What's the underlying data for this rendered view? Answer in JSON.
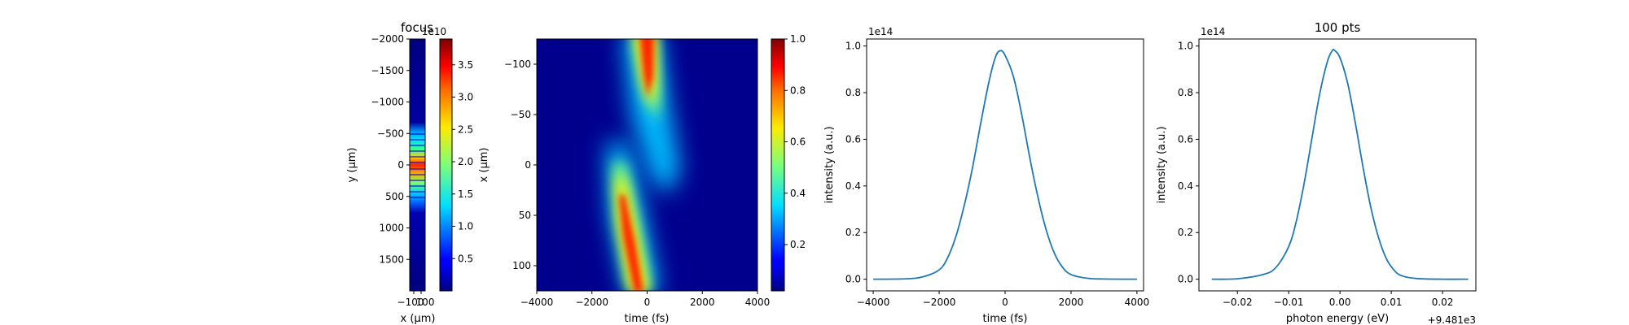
{
  "colors": {
    "line": "#1f77b4",
    "background": "#00007f"
  },
  "chart_data": [
    {
      "type": "heatmap",
      "title": "focus",
      "xlabel": "x (μm)",
      "ylabel": "y (μm)",
      "xticks": [
        "−100",
        "100"
      ],
      "ylim": [
        -2000,
        2000
      ],
      "yticks": [
        "−2000",
        "−1500",
        "−1000",
        "−500",
        "0",
        "500",
        "1000",
        "1500"
      ],
      "colormap": "jet",
      "colorbar": {
        "scale_label": "1e10",
        "range": [
          0,
          3.9
        ],
        "ticks": [
          "0.5",
          "1.0",
          "1.5",
          "2.0",
          "2.5",
          "3.0",
          "3.5"
        ]
      }
    },
    {
      "type": "heatmap",
      "xlabel": "time (fs)",
      "ylabel": "x (μm)",
      "xlim": [
        -4000,
        4000
      ],
      "xticks": [
        "−4000",
        "−2000",
        "0",
        "2000",
        "4000"
      ],
      "ylim": [
        -125,
        125
      ],
      "yticks": [
        "−100",
        "−50",
        "0",
        "50",
        "100"
      ],
      "colormap": "jet",
      "colorbar": {
        "range": [
          0.02,
          1.0
        ],
        "ticks": [
          "0.2",
          "0.4",
          "0.6",
          "0.8",
          "1.0"
        ]
      }
    },
    {
      "type": "line",
      "xlabel": "time (fs)",
      "ylabel": "intensity (a.u.)",
      "offset_label": "1e14",
      "xlim": [
        -4200,
        4200
      ],
      "xticks": [
        "−4000",
        "−2000",
        "0",
        "2000",
        "4000"
      ],
      "ylim": [
        -0.05,
        1.03
      ],
      "yticks": [
        "0.0",
        "0.2",
        "0.4",
        "0.6",
        "0.8",
        "1.0"
      ],
      "series": [
        {
          "x": [
            -4000,
            -3000,
            -2500,
            -2000,
            -1750,
            -1500,
            -1250,
            -1000,
            -750,
            -500,
            -300,
            -150,
            0,
            250,
            500,
            750,
            1000,
            1250,
            1500,
            1750,
            2000,
            2500,
            3000,
            4000
          ],
          "y": [
            0.0,
            0.002,
            0.01,
            0.04,
            0.09,
            0.18,
            0.31,
            0.47,
            0.66,
            0.84,
            0.95,
            0.98,
            0.96,
            0.87,
            0.71,
            0.52,
            0.35,
            0.21,
            0.11,
            0.05,
            0.02,
            0.004,
            0.001,
            0.0
          ]
        }
      ]
    },
    {
      "type": "line",
      "title": "100 pts",
      "xlabel": "photon energy (eV)",
      "ylabel": "intensity (a.u.)",
      "offset_label": "1e14",
      "x_offset_label": "+9.481e3",
      "xlim": [
        -0.0275,
        0.0265
      ],
      "xticks": [
        "−0.02",
        "−0.01",
        "0.00",
        "0.01",
        "0.02"
      ],
      "ylim": [
        -0.05,
        1.03
      ],
      "yticks": [
        "0.0",
        "0.2",
        "0.4",
        "0.6",
        "0.8",
        "1.0"
      ],
      "series": [
        {
          "x": [
            -0.025,
            -0.02,
            -0.015,
            -0.0125,
            -0.01,
            -0.0085,
            -0.007,
            -0.0055,
            -0.004,
            -0.0025,
            -0.0015,
            -0.001,
            0.0,
            0.0015,
            0.003,
            0.0045,
            0.006,
            0.0075,
            0.009,
            0.0105,
            0.012,
            0.015,
            0.02,
            0.025
          ],
          "y": [
            0.0,
            0.002,
            0.02,
            0.05,
            0.14,
            0.25,
            0.41,
            0.6,
            0.79,
            0.93,
            0.98,
            0.98,
            0.95,
            0.84,
            0.67,
            0.48,
            0.31,
            0.18,
            0.09,
            0.04,
            0.015,
            0.003,
            0.0,
            0.0
          ]
        }
      ]
    }
  ]
}
